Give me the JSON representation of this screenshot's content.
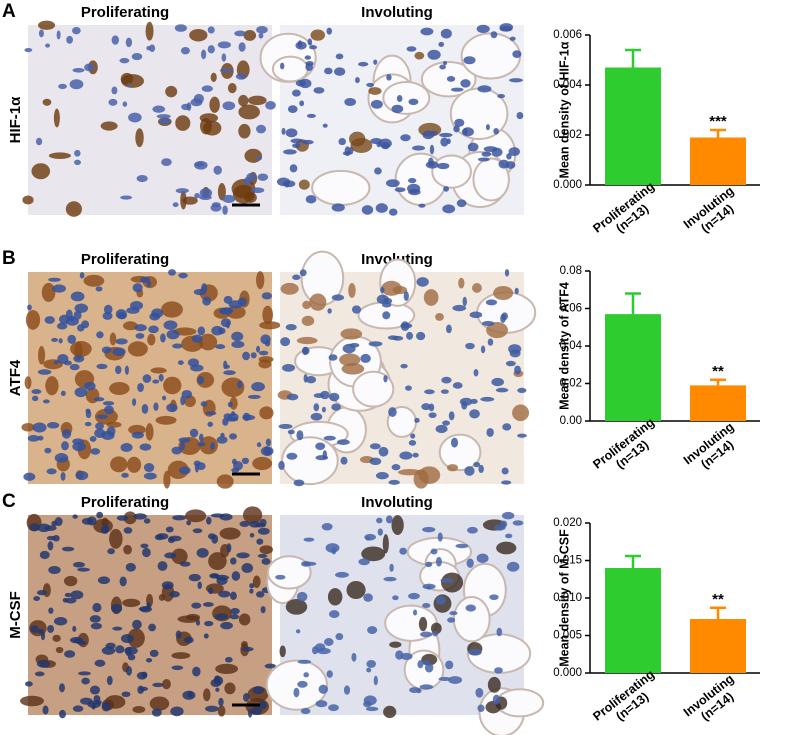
{
  "panels": [
    {
      "letter": "A",
      "marker": "HIF-1α",
      "columns": [
        "Proliferating",
        "Involuting"
      ]
    },
    {
      "letter": "B",
      "marker": "ATF4",
      "columns": [
        "Proliferating",
        "Involuting"
      ]
    },
    {
      "letter": "C",
      "marker": "M-CSF",
      "columns": [
        "Proliferating",
        "Involuting"
      ]
    }
  ],
  "chart_data": [
    {
      "type": "bar",
      "y_label": "Mean density of HIF-1α",
      "categories": [
        "Proliferating (n=13)",
        "Involuting (n=14)"
      ],
      "values": [
        0.0047,
        0.0019
      ],
      "errors": [
        0.0007,
        0.0003
      ],
      "colors": [
        "#2ecc2e",
        "#ff8a00"
      ],
      "value_annotations": [
        null,
        "***"
      ],
      "ylim": [
        0,
        0.006
      ],
      "yticks": [
        {
          "value": 0,
          "label": "0.000"
        },
        {
          "value": 0.002,
          "label": "0.002"
        },
        {
          "value": 0.004,
          "label": "0.004"
        },
        {
          "value": 0.006,
          "label": "0.006"
        }
      ]
    },
    {
      "type": "bar",
      "y_label": "Mean density of ATF4",
      "categories": [
        "Proliferating (n=13)",
        "Involuting (n=14)"
      ],
      "values": [
        0.057,
        0.019
      ],
      "errors": [
        0.011,
        0.003
      ],
      "colors": [
        "#2ecc2e",
        "#ff8a00"
      ],
      "value_annotations": [
        null,
        "**"
      ],
      "ylim": [
        0,
        0.08
      ],
      "yticks": [
        {
          "value": 0,
          "label": "0.00"
        },
        {
          "value": 0.02,
          "label": "0.02"
        },
        {
          "value": 0.04,
          "label": "0.04"
        },
        {
          "value": 0.06,
          "label": "0.06"
        },
        {
          "value": 0.08,
          "label": "0.08"
        }
      ]
    },
    {
      "type": "bar",
      "y_label": "Mean density of M-CSF",
      "categories": [
        "Proliferating (n=13)",
        "Involuting (n=14)"
      ],
      "values": [
        0.014,
        0.0072
      ],
      "errors": [
        0.0016,
        0.0015
      ],
      "colors": [
        "#2ecc2e",
        "#ff8a00"
      ],
      "value_annotations": [
        null,
        "**"
      ],
      "ylim": [
        0,
        0.02
      ],
      "yticks": [
        {
          "value": 0,
          "label": "0.000"
        },
        {
          "value": 0.005,
          "label": "0.005"
        },
        {
          "value": 0.01,
          "label": "0.010"
        },
        {
          "value": 0.015,
          "label": "0.015"
        },
        {
          "value": 0.02,
          "label": "0.020"
        }
      ]
    }
  ]
}
